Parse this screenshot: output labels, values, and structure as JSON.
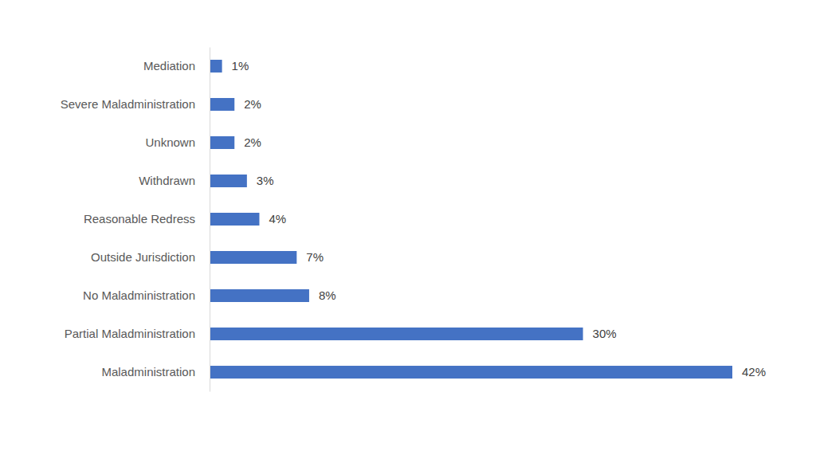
{
  "chart_data": {
    "type": "bar",
    "orientation": "horizontal",
    "categories": [
      "Mediation",
      "Severe Maladministration",
      "Unknown",
      "Withdrawn",
      "Reasonable Redress",
      "Outside Jurisdiction",
      "No Maladministration",
      "Partial Maladministration",
      "Maladministration"
    ],
    "values": [
      1,
      2,
      2,
      3,
      4,
      7,
      8,
      30,
      42
    ],
    "value_labels": [
      "1%",
      "2%",
      "2%",
      "3%",
      "4%",
      "7%",
      "8%",
      "30%",
      "42%"
    ],
    "color": "#4472c4",
    "xlim": [
      0,
      42
    ],
    "data_labels": true,
    "tick_labels": "y",
    "grid": false
  }
}
